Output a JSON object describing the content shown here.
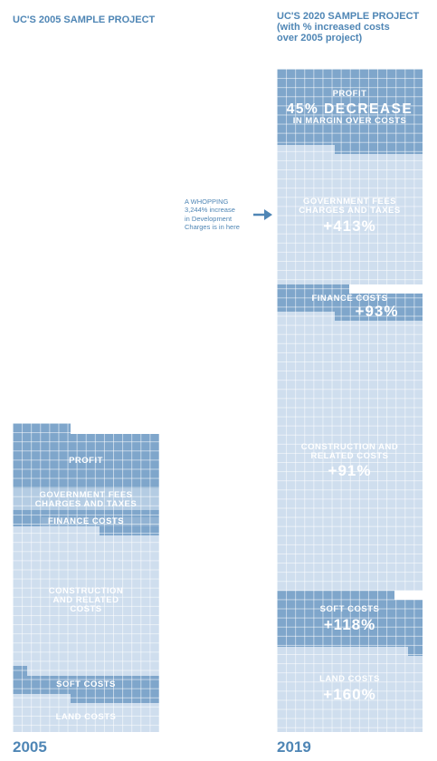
{
  "titles": {
    "y2005": "UC'S 2005 SAMPLE PROJECT",
    "y2020_line1": "UC'S 2020 SAMPLE PROJECT",
    "y2020_line2": "(with % increased costs",
    "y2020_line3": "over 2005 project)"
  },
  "years": {
    "left": "2005",
    "right": "2019"
  },
  "annotation": {
    "line1": "A WHOPPING",
    "line2": "3,244% increase",
    "line3": "in Development",
    "line4": "Charges is in here",
    "icon": "arrow-right-icon"
  },
  "colors": {
    "text": "#4f86b5",
    "light": "#cfdeee",
    "mid": "#b4cce3",
    "dark": "#7fa6cb"
  },
  "col2005": {
    "profit": "PROFIT",
    "gov_line1": "GOVERNMENT FEES",
    "gov_line2": "CHARGES AND TAXES",
    "finance": "FINANCE COSTS",
    "construction_line1": "CONSTRUCTION",
    "construction_line2": "AND RELATED",
    "construction_line3": "COSTS",
    "soft": "SOFT COSTS",
    "land": "LAND COSTS"
  },
  "col2020": {
    "profit": "PROFIT",
    "profit_big": "45% DECREASE",
    "profit_sub": "IN MARGIN OVER COSTS",
    "gov_line1": "GOVERNMENT FEES",
    "gov_line2": "CHARGES AND TAXES",
    "gov_pct": "+413%",
    "finance": "FINANCE COSTS",
    "finance_pct": "+93%",
    "construction_line1": "CONSTRUCTION AND",
    "construction_line2": "RELATED COSTS",
    "construction_pct": "+91%",
    "soft": "SOFT COSTS",
    "soft_pct": "+118%",
    "land": "LAND COSTS",
    "land_pct": "+160%"
  }
}
